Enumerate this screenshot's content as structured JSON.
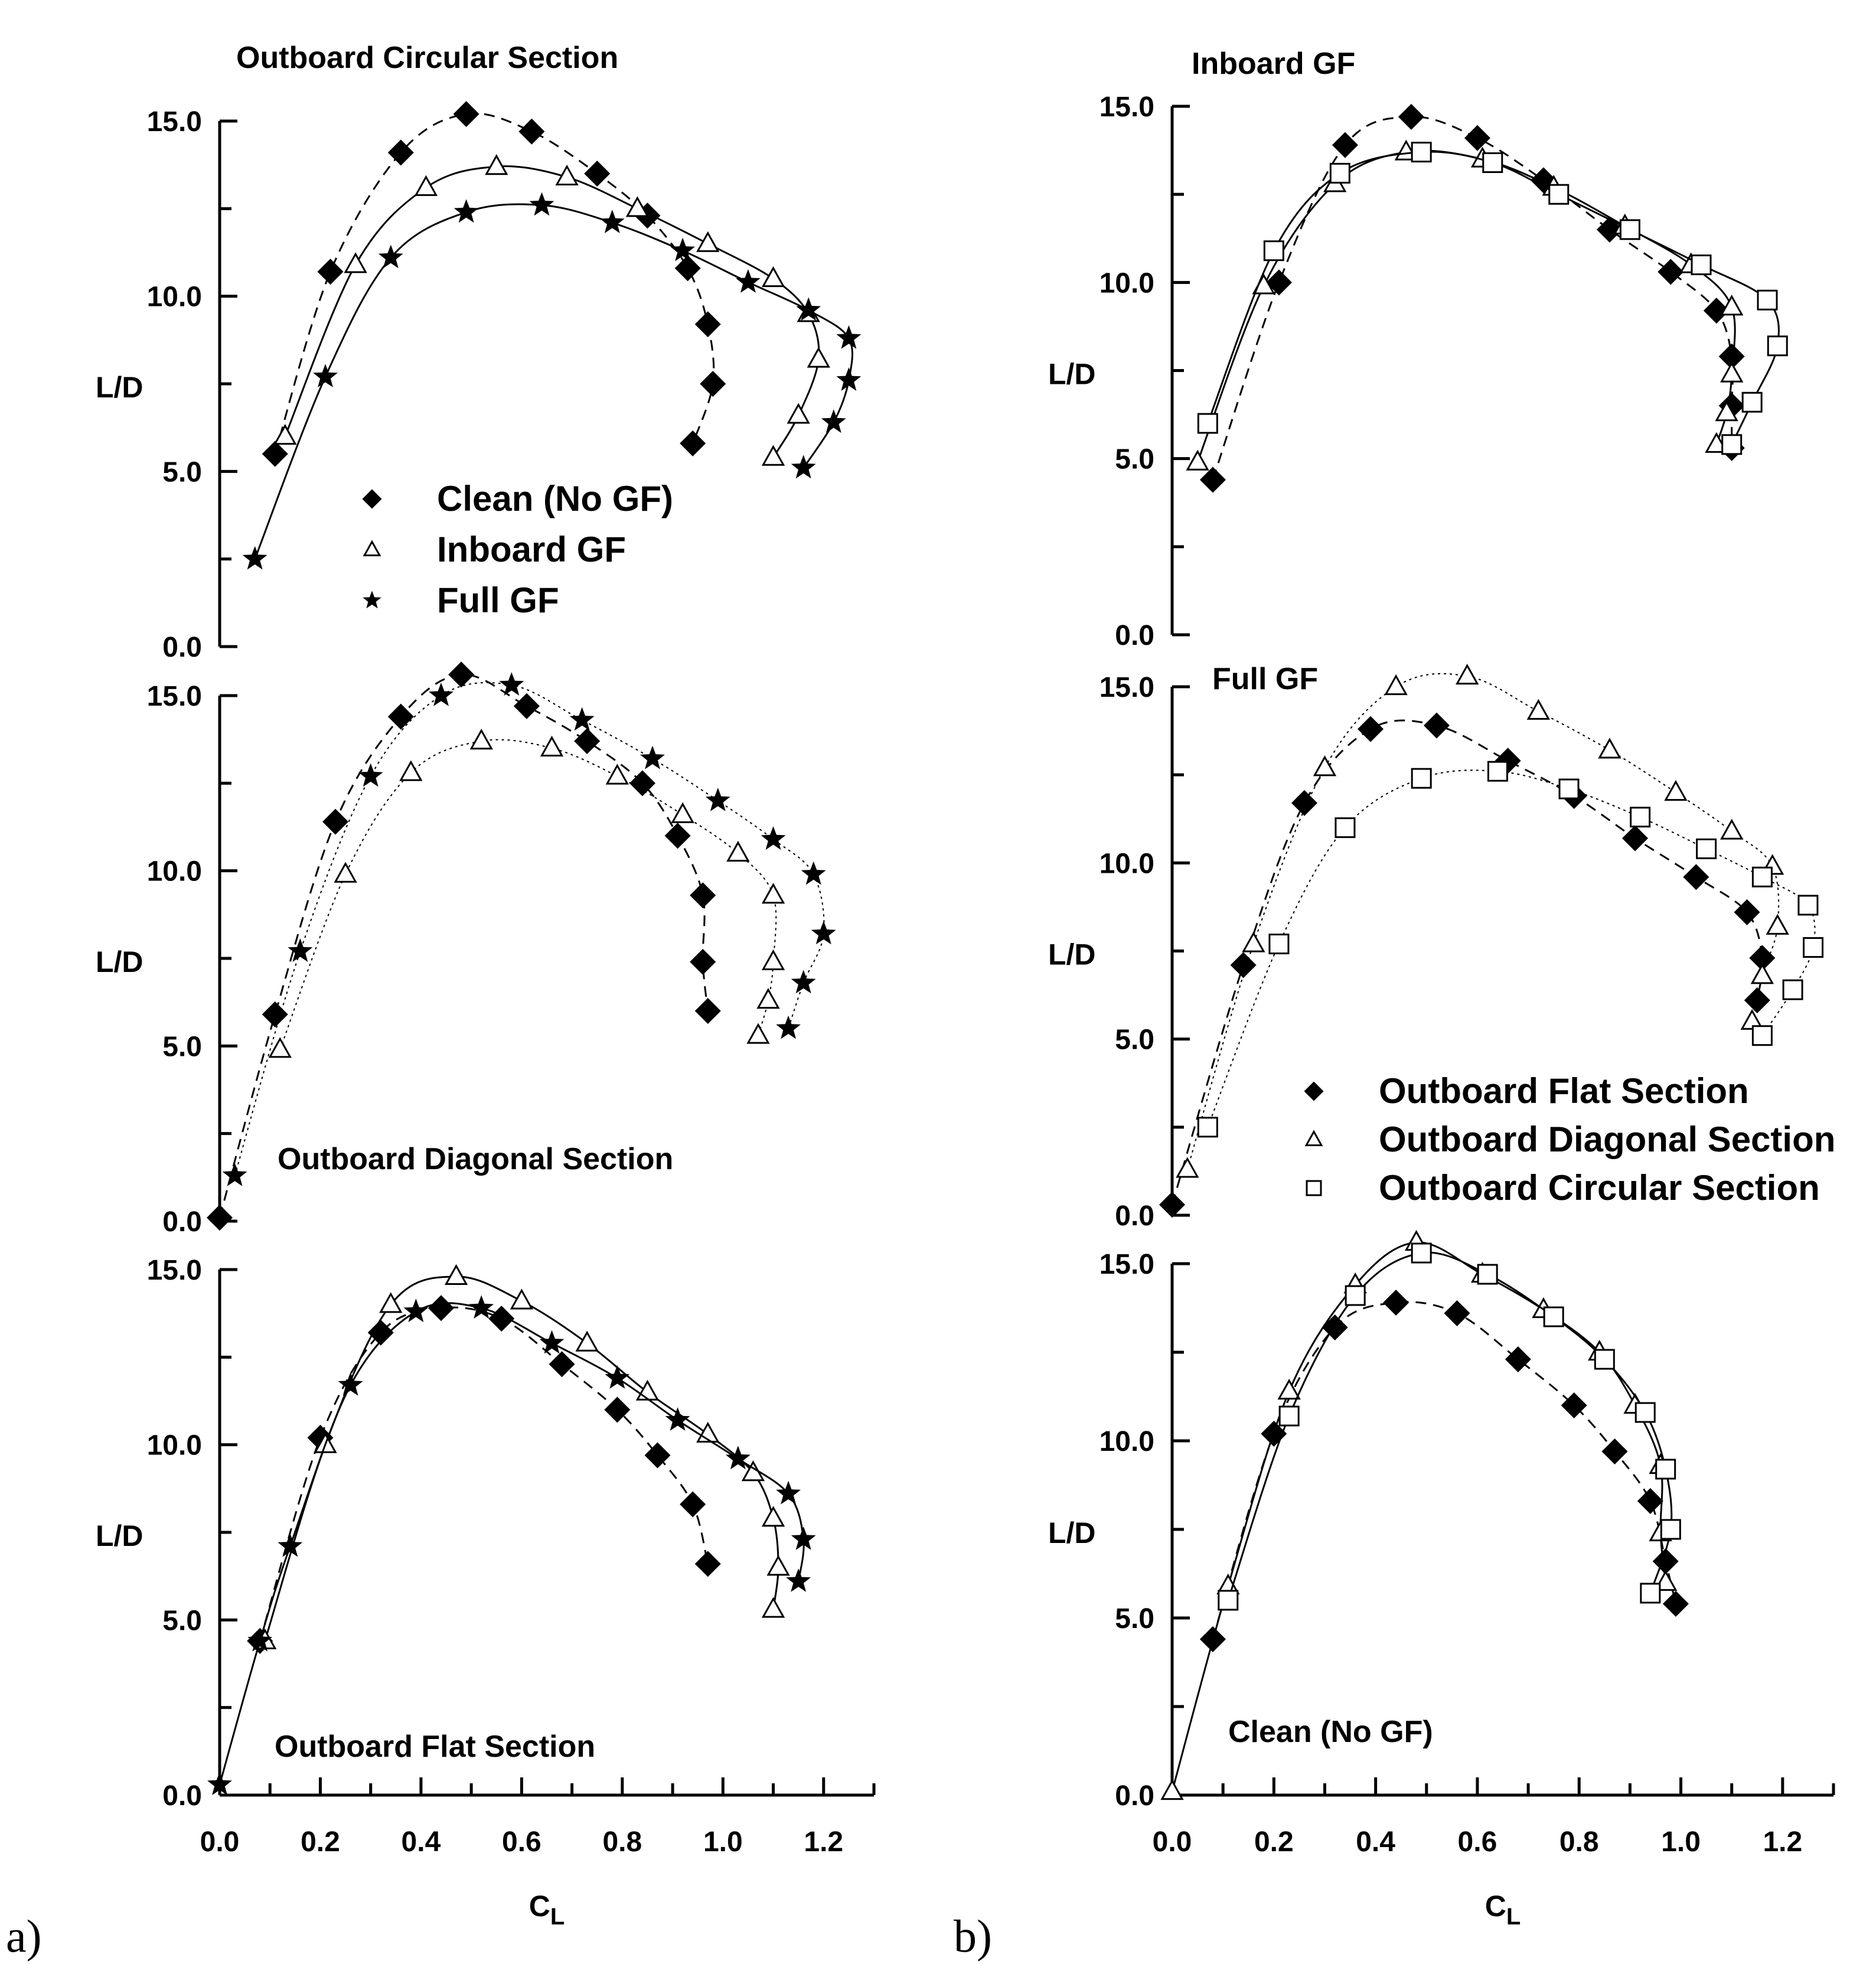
{
  "figure": {
    "panel_letters": [
      "a)",
      "b)"
    ]
  },
  "chart_data": [
    {
      "id": "a-top",
      "type": "line",
      "title": "Outboard Circular Section",
      "xlabel": "",
      "ylabel": "L/D",
      "xlim": [
        0.0,
        1.3
      ],
      "ylim": [
        0.0,
        15.0
      ],
      "show_x_ticks": false,
      "y_ticks": [
        "0.0",
        "5.0",
        "10.0",
        "15.0"
      ],
      "legend": {
        "position": "lower-center",
        "entries": [
          {
            "marker": "diamond",
            "label": "Clean (No GF)"
          },
          {
            "marker": "triangle",
            "label": "Inboard GF"
          },
          {
            "marker": "star",
            "label": "Full GF"
          }
        ]
      },
      "series": [
        {
          "name": "Clean (No GF)",
          "marker": "diamond",
          "line": "dash",
          "x": [
            0.11,
            0.22,
            0.36,
            0.49,
            0.62,
            0.75,
            0.85,
            0.93,
            0.97,
            0.98,
            0.94
          ],
          "y": [
            5.5,
            10.7,
            14.1,
            15.2,
            14.7,
            13.5,
            12.3,
            10.8,
            9.2,
            7.5,
            5.8
          ]
        },
        {
          "name": "Inboard GF",
          "marker": "triangle",
          "line": "solid",
          "x": [
            0.13,
            0.27,
            0.41,
            0.55,
            0.69,
            0.83,
            0.97,
            1.1,
            1.17,
            1.19,
            1.15,
            1.1
          ],
          "y": [
            6.0,
            10.9,
            13.1,
            13.7,
            13.4,
            12.5,
            11.5,
            10.5,
            9.5,
            8.2,
            6.6,
            5.4
          ]
        },
        {
          "name": "Full GF",
          "marker": "star",
          "line": "solid",
          "x": [
            0.07,
            0.21,
            0.34,
            0.49,
            0.64,
            0.78,
            0.92,
            1.05,
            1.17,
            1.25,
            1.25,
            1.22,
            1.16
          ],
          "y": [
            2.5,
            7.7,
            11.1,
            12.4,
            12.6,
            12.1,
            11.3,
            10.4,
            9.6,
            8.8,
            7.6,
            6.4,
            5.1
          ]
        }
      ]
    },
    {
      "id": "a-mid",
      "type": "line",
      "title": "Outboard Diagonal Section",
      "xlabel": "",
      "ylabel": "L/D",
      "xlim": [
        0.0,
        1.3
      ],
      "ylim": [
        0.0,
        15.0
      ],
      "show_x_ticks": false,
      "y_ticks": [
        "0.0",
        "5.0",
        "10.0",
        "15.0"
      ],
      "series": [
        {
          "name": "Clean (No GF)",
          "marker": "diamond",
          "line": "dash",
          "x": [
            0.0,
            0.11,
            0.23,
            0.36,
            0.48,
            0.61,
            0.73,
            0.84,
            0.91,
            0.96,
            0.96,
            0.97
          ],
          "y": [
            0.1,
            5.9,
            11.4,
            14.4,
            15.6,
            14.7,
            13.7,
            12.5,
            11.0,
            9.3,
            7.4,
            6.0
          ]
        },
        {
          "name": "Inboard GF",
          "marker": "triangle",
          "line": "dot",
          "x": [
            0.12,
            0.25,
            0.38,
            0.52,
            0.66,
            0.79,
            0.92,
            1.03,
            1.1,
            1.1,
            1.09,
            1.07
          ],
          "y": [
            4.9,
            9.9,
            12.8,
            13.7,
            13.5,
            12.7,
            11.6,
            10.5,
            9.3,
            7.4,
            6.3,
            5.3
          ]
        },
        {
          "name": "Full GF",
          "marker": "star",
          "line": "dot",
          "x": [
            0.03,
            0.16,
            0.3,
            0.44,
            0.58,
            0.72,
            0.86,
            0.99,
            1.1,
            1.18,
            1.2,
            1.16,
            1.13
          ],
          "y": [
            1.3,
            7.7,
            12.7,
            15.0,
            15.3,
            14.3,
            13.2,
            12.0,
            10.9,
            9.9,
            8.2,
            6.8,
            5.5
          ]
        }
      ]
    },
    {
      "id": "a-bot",
      "type": "line",
      "title": "Outboard Flat Section",
      "xlabel": "CL",
      "ylabel": "L/D",
      "xlim": [
        0.0,
        1.3
      ],
      "ylim": [
        0.0,
        15.0
      ],
      "show_x_ticks": true,
      "x_ticks": [
        "0.0",
        "0.2",
        "0.4",
        "0.6",
        "0.8",
        "1.0",
        "1.2"
      ],
      "y_ticks": [
        "0.0",
        "5.0",
        "10.0",
        "15.0"
      ],
      "series": [
        {
          "name": "Clean (No GF)",
          "marker": "diamond",
          "line": "dash",
          "x": [
            0.08,
            0.2,
            0.32,
            0.44,
            0.56,
            0.68,
            0.79,
            0.87,
            0.94,
            0.97
          ],
          "y": [
            4.4,
            10.2,
            13.2,
            13.9,
            13.6,
            12.3,
            11.0,
            9.7,
            8.3,
            6.6
          ]
        },
        {
          "name": "Inboard GF",
          "marker": "triangle",
          "line": "solid",
          "x": [
            0.09,
            0.21,
            0.34,
            0.47,
            0.6,
            0.73,
            0.85,
            0.97,
            1.06,
            1.1,
            1.11,
            1.1
          ],
          "y": [
            4.4,
            10.0,
            14.0,
            14.8,
            14.1,
            12.9,
            11.5,
            10.3,
            9.2,
            7.9,
            6.5,
            5.3
          ]
        },
        {
          "name": "Full GF",
          "marker": "star",
          "line": "solid",
          "x": [
            0.0,
            0.08,
            0.14,
            0.26,
            0.39,
            0.52,
            0.66,
            0.79,
            0.91,
            1.03,
            1.13,
            1.16,
            1.15
          ],
          "y": [
            0.3,
            4.4,
            7.1,
            11.7,
            13.8,
            13.9,
            12.9,
            11.9,
            10.7,
            9.6,
            8.6,
            7.3,
            6.1
          ]
        }
      ]
    },
    {
      "id": "b-top",
      "type": "line",
      "title": "Inboard GF",
      "xlabel": "",
      "ylabel": "L/D",
      "xlim": [
        0.0,
        1.3
      ],
      "ylim": [
        0.0,
        15.0
      ],
      "show_x_ticks": false,
      "y_ticks": [
        "0.0",
        "5.0",
        "10.0",
        "15.0"
      ],
      "series": [
        {
          "name": "Outboard Flat Section",
          "marker": "diamond",
          "line": "dash",
          "x": [
            0.08,
            0.21,
            0.34,
            0.47,
            0.6,
            0.73,
            0.86,
            0.98,
            1.07,
            1.1,
            1.1,
            1.1
          ],
          "y": [
            4.4,
            10.0,
            13.9,
            14.7,
            14.1,
            12.9,
            11.5,
            10.3,
            9.2,
            7.9,
            6.5,
            5.3
          ]
        },
        {
          "name": "Outboard Diagonal Section",
          "marker": "triangle",
          "line": "solid",
          "x": [
            0.05,
            0.18,
            0.32,
            0.46,
            0.61,
            0.75,
            0.89,
            1.02,
            1.1,
            1.1,
            1.09,
            1.07
          ],
          "y": [
            4.9,
            9.9,
            12.8,
            13.7,
            13.5,
            12.7,
            11.6,
            10.5,
            9.3,
            7.4,
            6.3,
            5.4
          ]
        },
        {
          "name": "Outboard Circular Section",
          "marker": "square",
          "line": "solid",
          "x": [
            0.07,
            0.2,
            0.33,
            0.49,
            0.63,
            0.76,
            0.9,
            1.04,
            1.17,
            1.19,
            1.14,
            1.1
          ],
          "y": [
            6.0,
            10.9,
            13.1,
            13.7,
            13.4,
            12.5,
            11.5,
            10.5,
            9.5,
            8.2,
            6.6,
            5.4
          ]
        }
      ]
    },
    {
      "id": "b-mid",
      "type": "line",
      "title": "Full GF",
      "xlabel": "",
      "ylabel": "L/D",
      "xlim": [
        0.0,
        1.3
      ],
      "ylim": [
        0.0,
        15.0
      ],
      "show_x_ticks": false,
      "y_ticks": [
        "0.0",
        "5.0",
        "10.0",
        "15.0"
      ],
      "legend": {
        "position": "lower-right",
        "entries": [
          {
            "marker": "diamond",
            "label": "Outboard Flat Section"
          },
          {
            "marker": "triangle",
            "label": "Outboard Diagonal Section"
          },
          {
            "marker": "square",
            "label": "Outboard Circular Section"
          }
        ]
      },
      "series": [
        {
          "name": "Outboard Flat Section",
          "marker": "diamond",
          "line": "dash",
          "x": [
            0.0,
            0.14,
            0.26,
            0.39,
            0.52,
            0.66,
            0.79,
            0.91,
            1.03,
            1.13,
            1.16,
            1.15
          ],
          "y": [
            0.3,
            7.1,
            11.7,
            13.8,
            13.9,
            12.9,
            11.9,
            10.7,
            9.6,
            8.6,
            7.3,
            6.1
          ]
        },
        {
          "name": "Outboard Diagonal Section",
          "marker": "triangle",
          "line": "dot",
          "x": [
            0.03,
            0.16,
            0.3,
            0.44,
            0.58,
            0.72,
            0.86,
            0.99,
            1.1,
            1.18,
            1.19,
            1.16,
            1.14
          ],
          "y": [
            1.3,
            7.7,
            12.7,
            15.0,
            15.3,
            14.3,
            13.2,
            12.0,
            10.9,
            9.9,
            8.2,
            6.8,
            5.5
          ]
        },
        {
          "name": "Outboard Circular Section",
          "marker": "square",
          "line": "dot",
          "x": [
            0.07,
            0.21,
            0.34,
            0.49,
            0.64,
            0.78,
            0.92,
            1.05,
            1.16,
            1.25,
            1.26,
            1.22,
            1.16
          ],
          "y": [
            2.5,
            7.7,
            11.0,
            12.4,
            12.6,
            12.1,
            11.3,
            10.4,
            9.6,
            8.8,
            7.6,
            6.4,
            5.1
          ]
        }
      ]
    },
    {
      "id": "b-bot",
      "type": "line",
      "title": "Clean (No GF)",
      "xlabel": "CL",
      "ylabel": "L/D",
      "xlim": [
        0.0,
        1.3
      ],
      "ylim": [
        0.0,
        15.0
      ],
      "show_x_ticks": true,
      "x_ticks": [
        "0.0",
        "0.2",
        "0.4",
        "0.6",
        "0.8",
        "1.0",
        "1.2"
      ],
      "y_ticks": [
        "0.0",
        "5.0",
        "10.0",
        "15.0"
      ],
      "series": [
        {
          "name": "Outboard Flat Section",
          "marker": "diamond",
          "line": "dash",
          "x": [
            0.08,
            0.2,
            0.32,
            0.44,
            0.56,
            0.68,
            0.79,
            0.87,
            0.94,
            0.97,
            0.99
          ],
          "y": [
            4.4,
            10.2,
            13.2,
            13.9,
            13.6,
            12.3,
            11.0,
            9.7,
            8.3,
            6.6,
            5.4
          ]
        },
        {
          "name": "Outboard Diagonal Section",
          "marker": "triangle",
          "line": "solid",
          "x": [
            0.0,
            0.11,
            0.23,
            0.36,
            0.48,
            0.61,
            0.73,
            0.84,
            0.91,
            0.96,
            0.96,
            0.97
          ],
          "y": [
            0.1,
            5.9,
            11.4,
            14.4,
            15.6,
            14.7,
            13.7,
            12.5,
            11.0,
            9.3,
            7.4,
            6.0
          ]
        },
        {
          "name": "Outboard Circular Section",
          "marker": "square",
          "line": "solid",
          "x": [
            0.11,
            0.23,
            0.36,
            0.49,
            0.62,
            0.75,
            0.85,
            0.93,
            0.97,
            0.98,
            0.94
          ],
          "y": [
            5.5,
            10.7,
            14.1,
            15.3,
            14.7,
            13.5,
            12.3,
            10.8,
            9.2,
            7.5,
            5.7
          ]
        }
      ]
    }
  ]
}
